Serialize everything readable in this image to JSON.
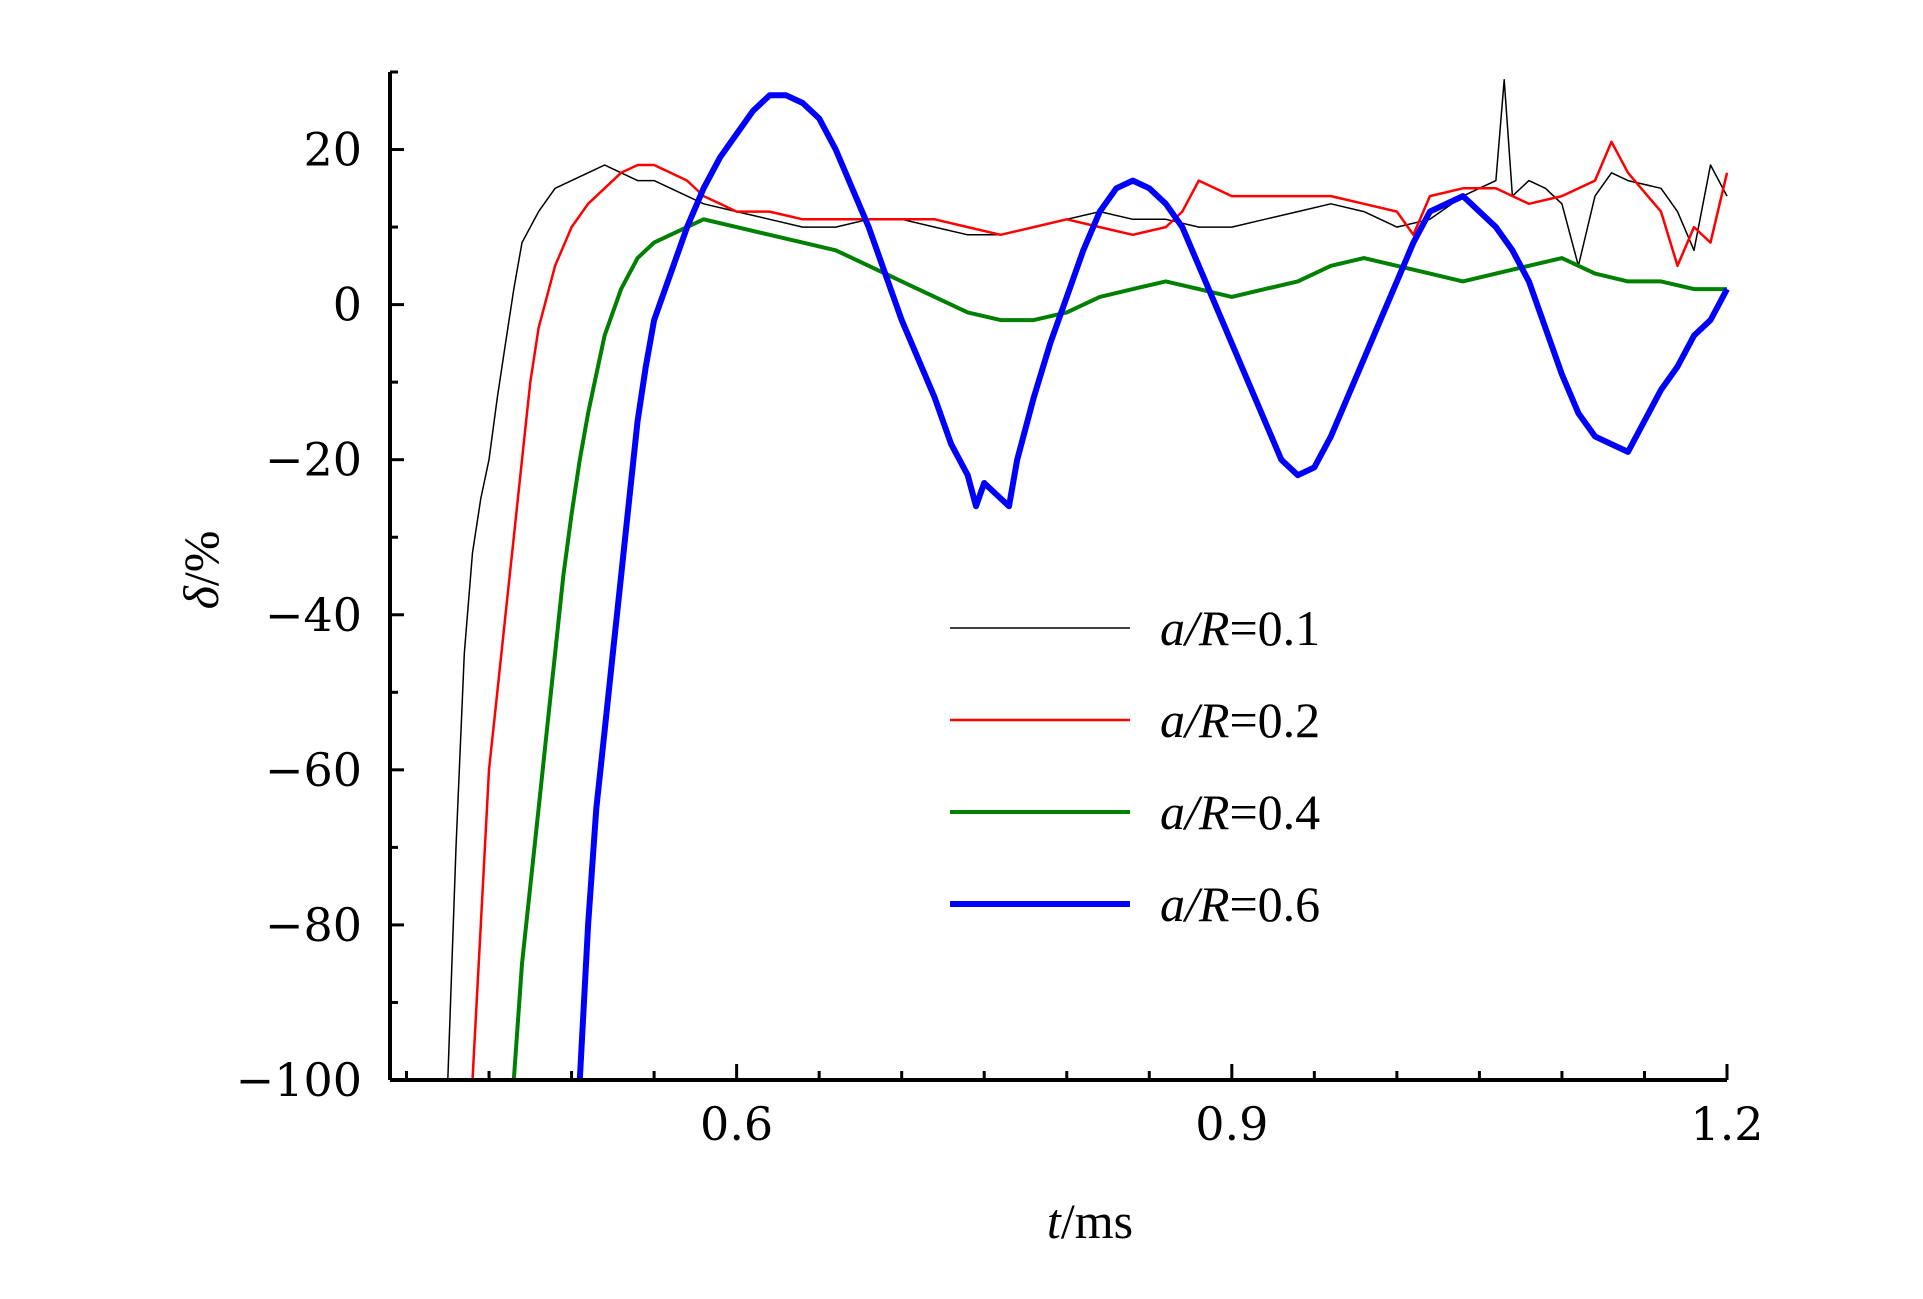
{
  "chart_data": {
    "type": "line",
    "xlabel_var": "t",
    "xlabel_unit": "/ms",
    "ylabel_var": "δ",
    "ylabel_unit": "/%",
    "xlim": [
      0.39,
      1.2
    ],
    "ylim": [
      -100,
      30
    ],
    "xticks": [
      "0.6",
      "0.9",
      "1.2"
    ],
    "yticks": [
      "20",
      "0",
      "−20",
      "−40",
      "−60",
      "−80",
      "−100"
    ],
    "legend_position": "center-right",
    "grid": false,
    "series": [
      {
        "name": "a/R=0.1",
        "label_var": "a/R",
        "label_val": "=0.1",
        "color": "#000000",
        "width": 1.5,
        "points": [
          [
            0.425,
            -100
          ],
          [
            0.43,
            -70
          ],
          [
            0.435,
            -45
          ],
          [
            0.44,
            -32
          ],
          [
            0.445,
            -25
          ],
          [
            0.45,
            -20
          ],
          [
            0.455,
            -12
          ],
          [
            0.46,
            -5
          ],
          [
            0.465,
            2
          ],
          [
            0.47,
            8
          ],
          [
            0.48,
            12
          ],
          [
            0.49,
            15
          ],
          [
            0.5,
            16
          ],
          [
            0.51,
            17
          ],
          [
            0.52,
            18
          ],
          [
            0.53,
            17
          ],
          [
            0.54,
            16
          ],
          [
            0.55,
            16
          ],
          [
            0.56,
            15
          ],
          [
            0.57,
            14
          ],
          [
            0.58,
            13
          ],
          [
            0.6,
            12
          ],
          [
            0.62,
            11
          ],
          [
            0.64,
            10
          ],
          [
            0.66,
            10
          ],
          [
            0.68,
            11
          ],
          [
            0.7,
            11
          ],
          [
            0.72,
            10
          ],
          [
            0.74,
            9
          ],
          [
            0.76,
            9
          ],
          [
            0.78,
            10
          ],
          [
            0.8,
            11
          ],
          [
            0.82,
            12
          ],
          [
            0.84,
            11
          ],
          [
            0.86,
            11
          ],
          [
            0.88,
            10
          ],
          [
            0.9,
            10
          ],
          [
            0.92,
            11
          ],
          [
            0.94,
            12
          ],
          [
            0.96,
            13
          ],
          [
            0.98,
            12
          ],
          [
            1.0,
            10
          ],
          [
            1.02,
            11
          ],
          [
            1.04,
            14
          ],
          [
            1.06,
            16
          ],
          [
            1.065,
            29
          ],
          [
            1.07,
            14
          ],
          [
            1.08,
            16
          ],
          [
            1.09,
            15
          ],
          [
            1.1,
            13
          ],
          [
            1.11,
            5
          ],
          [
            1.12,
            14
          ],
          [
            1.13,
            17
          ],
          [
            1.14,
            16
          ],
          [
            1.16,
            15
          ],
          [
            1.17,
            12
          ],
          [
            1.18,
            7
          ],
          [
            1.19,
            18
          ],
          [
            1.2,
            14
          ]
        ]
      },
      {
        "name": "a/R=0.2",
        "label_var": "a/R",
        "label_val": "=0.2",
        "color": "#ff0000",
        "width": 2.5,
        "points": [
          [
            0.44,
            -100
          ],
          [
            0.445,
            -80
          ],
          [
            0.45,
            -60
          ],
          [
            0.455,
            -50
          ],
          [
            0.46,
            -40
          ],
          [
            0.465,
            -30
          ],
          [
            0.47,
            -20
          ],
          [
            0.475,
            -10
          ],
          [
            0.48,
            -3
          ],
          [
            0.49,
            5
          ],
          [
            0.5,
            10
          ],
          [
            0.51,
            13
          ],
          [
            0.52,
            15
          ],
          [
            0.53,
            17
          ],
          [
            0.54,
            18
          ],
          [
            0.55,
            18
          ],
          [
            0.56,
            17
          ],
          [
            0.57,
            16
          ],
          [
            0.58,
            14
          ],
          [
            0.59,
            13
          ],
          [
            0.6,
            12
          ],
          [
            0.62,
            12
          ],
          [
            0.64,
            11
          ],
          [
            0.66,
            11
          ],
          [
            0.68,
            11
          ],
          [
            0.7,
            11
          ],
          [
            0.72,
            11
          ],
          [
            0.74,
            10
          ],
          [
            0.76,
            9
          ],
          [
            0.78,
            10
          ],
          [
            0.8,
            11
          ],
          [
            0.82,
            10
          ],
          [
            0.84,
            9
          ],
          [
            0.86,
            10
          ],
          [
            0.87,
            12
          ],
          [
            0.88,
            16
          ],
          [
            0.9,
            14
          ],
          [
            0.92,
            14
          ],
          [
            0.94,
            14
          ],
          [
            0.96,
            14
          ],
          [
            0.98,
            13
          ],
          [
            1.0,
            12
          ],
          [
            1.01,
            9
          ],
          [
            1.02,
            14
          ],
          [
            1.04,
            15
          ],
          [
            1.06,
            15
          ],
          [
            1.08,
            13
          ],
          [
            1.1,
            14
          ],
          [
            1.12,
            16
          ],
          [
            1.13,
            21
          ],
          [
            1.14,
            17
          ],
          [
            1.16,
            12
          ],
          [
            1.17,
            5
          ],
          [
            1.18,
            10
          ],
          [
            1.19,
            8
          ],
          [
            1.2,
            17
          ]
        ]
      },
      {
        "name": "a/R=0.4",
        "label_var": "a/R",
        "label_val": "=0.4",
        "color": "#008000",
        "width": 4,
        "points": [
          [
            0.465,
            -100
          ],
          [
            0.47,
            -85
          ],
          [
            0.475,
            -75
          ],
          [
            0.48,
            -65
          ],
          [
            0.485,
            -55
          ],
          [
            0.49,
            -45
          ],
          [
            0.495,
            -35
          ],
          [
            0.5,
            -27
          ],
          [
            0.505,
            -20
          ],
          [
            0.51,
            -14
          ],
          [
            0.515,
            -9
          ],
          [
            0.52,
            -4
          ],
          [
            0.525,
            -1
          ],
          [
            0.53,
            2
          ],
          [
            0.535,
            4
          ],
          [
            0.54,
            6
          ],
          [
            0.545,
            7
          ],
          [
            0.55,
            8
          ],
          [
            0.56,
            9
          ],
          [
            0.57,
            10
          ],
          [
            0.58,
            11
          ],
          [
            0.6,
            10
          ],
          [
            0.62,
            9
          ],
          [
            0.64,
            8
          ],
          [
            0.66,
            7
          ],
          [
            0.68,
            5
          ],
          [
            0.7,
            3
          ],
          [
            0.72,
            1
          ],
          [
            0.74,
            -1
          ],
          [
            0.76,
            -2
          ],
          [
            0.78,
            -2
          ],
          [
            0.8,
            -1
          ],
          [
            0.82,
            1
          ],
          [
            0.84,
            2
          ],
          [
            0.86,
            3
          ],
          [
            0.88,
            2
          ],
          [
            0.9,
            1
          ],
          [
            0.92,
            2
          ],
          [
            0.94,
            3
          ],
          [
            0.96,
            5
          ],
          [
            0.98,
            6
          ],
          [
            1.0,
            5
          ],
          [
            1.02,
            4
          ],
          [
            1.04,
            3
          ],
          [
            1.06,
            4
          ],
          [
            1.08,
            5
          ],
          [
            1.1,
            6
          ],
          [
            1.12,
            4
          ],
          [
            1.14,
            3
          ],
          [
            1.16,
            3
          ],
          [
            1.18,
            2
          ],
          [
            1.2,
            2
          ]
        ]
      },
      {
        "name": "a/R=0.6",
        "label_var": "a/R",
        "label_val": "=0.6",
        "color": "#0000ff",
        "width": 6,
        "points": [
          [
            0.505,
            -100
          ],
          [
            0.51,
            -80
          ],
          [
            0.515,
            -65
          ],
          [
            0.52,
            -55
          ],
          [
            0.525,
            -45
          ],
          [
            0.53,
            -35
          ],
          [
            0.535,
            -25
          ],
          [
            0.54,
            -15
          ],
          [
            0.545,
            -8
          ],
          [
            0.55,
            -2
          ],
          [
            0.56,
            4
          ],
          [
            0.57,
            10
          ],
          [
            0.58,
            15
          ],
          [
            0.59,
            19
          ],
          [
            0.6,
            22
          ],
          [
            0.61,
            25
          ],
          [
            0.62,
            27
          ],
          [
            0.63,
            27
          ],
          [
            0.64,
            26
          ],
          [
            0.65,
            24
          ],
          [
            0.66,
            20
          ],
          [
            0.67,
            15
          ],
          [
            0.68,
            10
          ],
          [
            0.69,
            4
          ],
          [
            0.7,
            -2
          ],
          [
            0.71,
            -7
          ],
          [
            0.72,
            -12
          ],
          [
            0.73,
            -18
          ],
          [
            0.74,
            -22
          ],
          [
            0.745,
            -26
          ],
          [
            0.75,
            -23
          ],
          [
            0.76,
            -25
          ],
          [
            0.765,
            -26
          ],
          [
            0.77,
            -20
          ],
          [
            0.78,
            -12
          ],
          [
            0.79,
            -5
          ],
          [
            0.8,
            1
          ],
          [
            0.81,
            7
          ],
          [
            0.82,
            12
          ],
          [
            0.83,
            15
          ],
          [
            0.84,
            16
          ],
          [
            0.85,
            15
          ],
          [
            0.86,
            13
          ],
          [
            0.87,
            10
          ],
          [
            0.88,
            5
          ],
          [
            0.89,
            0
          ],
          [
            0.9,
            -5
          ],
          [
            0.91,
            -10
          ],
          [
            0.92,
            -15
          ],
          [
            0.93,
            -20
          ],
          [
            0.94,
            -22
          ],
          [
            0.95,
            -21
          ],
          [
            0.96,
            -17
          ],
          [
            0.97,
            -12
          ],
          [
            0.98,
            -7
          ],
          [
            0.99,
            -2
          ],
          [
            1.0,
            3
          ],
          [
            1.01,
            8
          ],
          [
            1.02,
            12
          ],
          [
            1.03,
            13
          ],
          [
            1.04,
            14
          ],
          [
            1.05,
            12
          ],
          [
            1.06,
            10
          ],
          [
            1.07,
            7
          ],
          [
            1.08,
            3
          ],
          [
            1.09,
            -3
          ],
          [
            1.1,
            -9
          ],
          [
            1.11,
            -14
          ],
          [
            1.12,
            -17
          ],
          [
            1.13,
            -18
          ],
          [
            1.14,
            -19
          ],
          [
            1.15,
            -15
          ],
          [
            1.16,
            -11
          ],
          [
            1.17,
            -8
          ],
          [
            1.18,
            -4
          ],
          [
            1.19,
            -2
          ],
          [
            1.2,
            2
          ]
        ]
      }
    ]
  }
}
